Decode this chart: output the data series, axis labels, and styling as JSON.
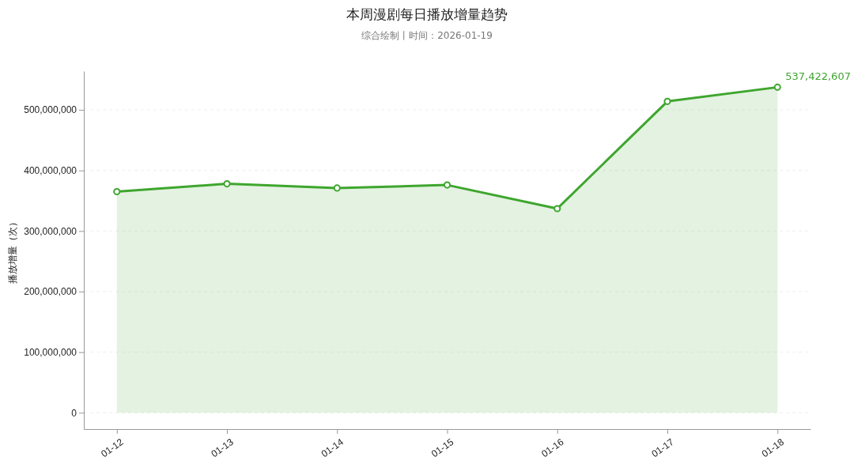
{
  "chart_data": {
    "type": "area",
    "title": "本周漫剧每日播放增量趋势",
    "subtitle": "综合绘制丨时间：2026-01-19",
    "ylabel": "播放增量（次）",
    "categories": [
      "01-12",
      "01-13",
      "01-14",
      "01-15",
      "01-16",
      "01-17",
      "01-18"
    ],
    "series": [
      {
        "color": "#3ea62e",
        "values": [
          365000000,
          378000000,
          371000000,
          376000000,
          337000000,
          514000000,
          537422607
        ],
        "value_labels": [
          null,
          null,
          null,
          null,
          null,
          null,
          "537,422,607"
        ]
      }
    ],
    "ylim": [
      -27000000,
      564000000
    ],
    "yticks": [
      0,
      {
        "value": 100000000,
        "label": "100,000,000"
      },
      {
        "value": 200000000,
        "label": "200,000,000"
      },
      {
        "value": 300000000,
        "label": "300,000,000"
      },
      {
        "value": 400000000,
        "label": "400,000,000"
      },
      {
        "value": 500000000,
        "label": "500,000,000"
      }
    ],
    "grid": "y",
    "marker": "circle",
    "line_style": "solid"
  }
}
